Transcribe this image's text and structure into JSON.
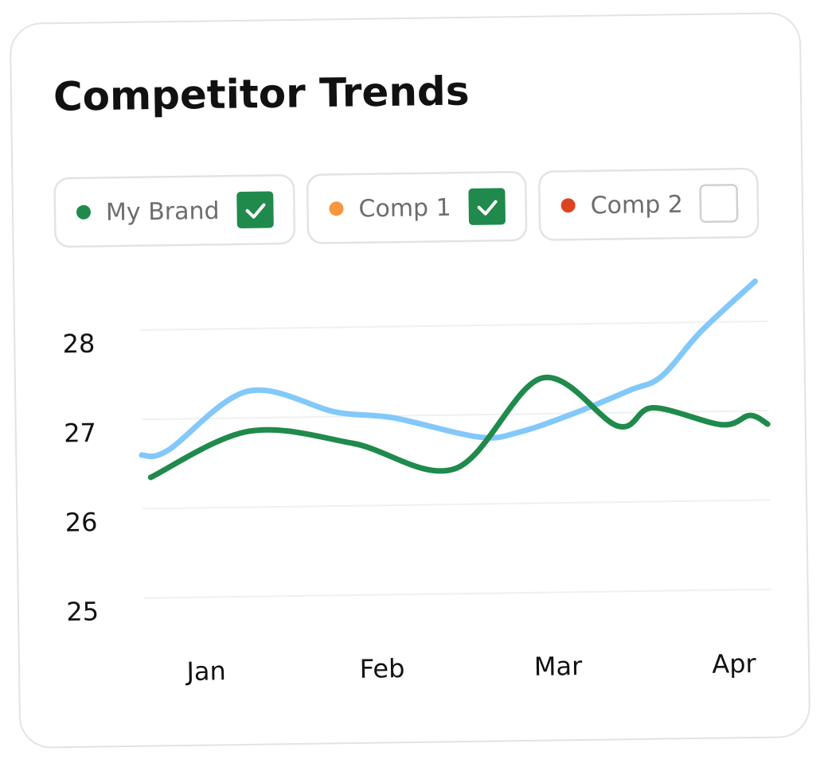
{
  "chart_data": {
    "type": "line",
    "title": "Competitor Trends",
    "xticks": [
      {
        "value": 0,
        "label": "Jan"
      },
      {
        "value": 1,
        "label": "Feb"
      },
      {
        "value": 2,
        "label": "Mar"
      },
      {
        "value": 3,
        "label": "Apr"
      }
    ],
    "xlim": [
      -0.35,
      3.21
    ],
    "ylim": [
      25,
      28.5
    ],
    "yticks": [
      25,
      26,
      27,
      28
    ],
    "grid": true,
    "series": [
      {
        "name": "My Brand",
        "color": "#1f8a4c",
        "line_color": "#1f8a4c",
        "checked": true,
        "x": [
          -0.3,
          0.26,
          0.85,
          1.43,
          1.93,
          2.36,
          2.56,
          2.95,
          3.11,
          3.21
        ],
        "values": [
          26.35,
          26.85,
          26.7,
          26.4,
          27.4,
          26.85,
          27.05,
          26.85,
          26.95,
          26.85
        ]
      },
      {
        "name": "Comp 1",
        "color": "#f7963e",
        "line_color": "#82c8fa",
        "checked": true,
        "x": [
          -0.35,
          -0.2,
          0.26,
          0.76,
          1.08,
          1.57,
          1.8,
          2.11,
          2.43,
          2.61,
          2.84,
          3.15
        ],
        "values": [
          26.6,
          26.65,
          27.3,
          27.05,
          26.98,
          26.75,
          26.8,
          27.0,
          27.25,
          27.4,
          27.9,
          28.45
        ]
      },
      {
        "name": "Comp 2",
        "color": "#dc4320",
        "checked": false
      }
    ]
  }
}
